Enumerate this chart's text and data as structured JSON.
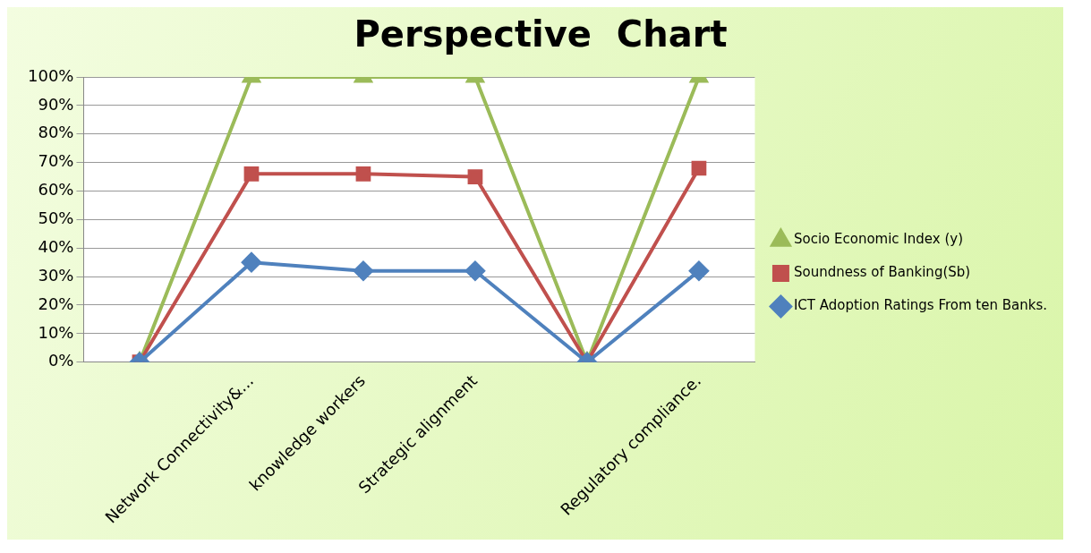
{
  "chart_data": {
    "type": "line",
    "title": "Perspective  Chart",
    "categories": [
      null,
      "Network Connectivity&...",
      "knowledge workers",
      "Strategic alignment",
      null,
      "Regulatory compliance."
    ],
    "series": [
      {
        "name": "Socio Economic Index (y)",
        "color": "#9bbb59",
        "values": [
          0,
          100,
          100,
          100,
          0,
          100
        ],
        "marker": "triangle"
      },
      {
        "name": "Soundness of Banking(Sb)",
        "color": "#c0504d",
        "values": [
          0,
          66,
          66,
          65,
          0,
          68
        ],
        "marker": "square"
      },
      {
        "name": "ICT Adoption Ratings From ten Banks.",
        "color": "#4f81bd",
        "values": [
          0,
          35,
          32,
          32,
          0,
          32
        ],
        "marker": "diamond"
      }
    ],
    "ylim": [
      0,
      100
    ],
    "yticks": [
      {
        "value": 0,
        "label": "0%"
      },
      {
        "value": 10,
        "label": "10%"
      },
      {
        "value": 20,
        "label": "20%"
      },
      {
        "value": 30,
        "label": "30%"
      },
      {
        "value": 40,
        "label": "40%"
      },
      {
        "value": 50,
        "label": "50%"
      },
      {
        "value": 60,
        "label": "60%"
      },
      {
        "value": 70,
        "label": "70%"
      },
      {
        "value": 80,
        "label": "80%"
      },
      {
        "value": 90,
        "label": "90%"
      },
      {
        "value": 100,
        "label": "100%"
      }
    ],
    "grid": "y",
    "legend": "right",
    "line_style": "solid"
  }
}
